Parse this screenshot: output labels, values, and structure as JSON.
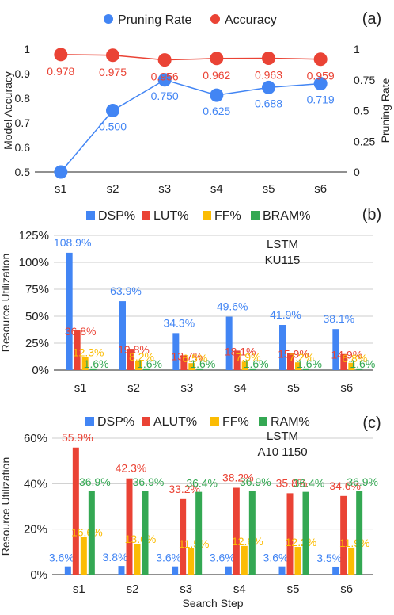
{
  "colors": {
    "blue": "#4285F4",
    "red": "#EA4335",
    "yellow": "#FBBC04",
    "green": "#34A853",
    "axis": "#222222",
    "grid": "#cccccc"
  },
  "chart_data": [
    {
      "panel_label": "(a)",
      "type": "line",
      "categories": [
        "s1",
        "s2",
        "s3",
        "s4",
        "s5",
        "s6"
      ],
      "legend": [
        "Pruning Rate",
        "Accuracy"
      ],
      "legend_position": "top",
      "grid": false,
      "ylabel": "Model Accuracy",
      "y2label": "Pruning Rate",
      "ylim": [
        0.5,
        1
      ],
      "yticks": [
        "0.5",
        "0.6",
        "0.7",
        "0.8",
        "0.9",
        "1"
      ],
      "y2lim": [
        0,
        1
      ],
      "y2ticks": [
        "0",
        "0.25",
        "0.5",
        "0.75",
        "1"
      ],
      "series": [
        {
          "name": "Pruning Rate",
          "axis": "right",
          "values": [
            0.0,
            0.5,
            0.75,
            0.625,
            0.688,
            0.719
          ],
          "labels": [
            "",
            "0.500",
            "0.750",
            "0.625",
            "0.688",
            "0.719"
          ]
        },
        {
          "name": "Accuracy",
          "axis": "left",
          "values": [
            0.978,
            0.975,
            0.956,
            0.962,
            0.963,
            0.959
          ],
          "labels": [
            "0.978",
            "0.975",
            "0.956",
            "0.962",
            "0.963",
            "0.959"
          ]
        }
      ]
    },
    {
      "panel_label": "(b)",
      "type": "bar",
      "categories": [
        "s1",
        "s2",
        "s3",
        "s4",
        "s5",
        "s6"
      ],
      "legend": [
        "DSP%",
        "LUT%",
        "FF%",
        "BRAM%"
      ],
      "legend_position": "top",
      "grid": true,
      "ylabel": "Resource Utilization",
      "ylim": [
        0,
        125
      ],
      "yticks": [
        "0%",
        "25%",
        "50%",
        "75%",
        "100%",
        "125%"
      ],
      "annotation": [
        "LSTM",
        "KU115"
      ],
      "series": [
        {
          "name": "DSP%",
          "values": [
            108.9,
            63.9,
            34.3,
            49.6,
            41.9,
            38.1
          ],
          "labels": [
            "108.9%",
            "63.9%",
            "34.3%",
            "49.6%",
            "41.9%",
            "38.1%"
          ]
        },
        {
          "name": "LUT%",
          "values": [
            36.8,
            19.8,
            13.7,
            18.1,
            15.9,
            14.9
          ],
          "labels": [
            "36.8%",
            "19.8%",
            "13.7%",
            "18.1%",
            "15.9%",
            "14.9%"
          ]
        },
        {
          "name": "FF%",
          "values": [
            12.3,
            8.2,
            6.5,
            7.9,
            7.2,
            6.8
          ],
          "labels": [
            "12.3%",
            "8.2%",
            "6.5%",
            "7.9%",
            "7.2%",
            "6.8%"
          ]
        },
        {
          "name": "BRAM%",
          "values": [
            1.6,
            1.6,
            1.6,
            1.6,
            1.6,
            1.6
          ],
          "labels": [
            "1.6%",
            "1.6%",
            "1.6%",
            "1.6%",
            "1.6%",
            "1.6%"
          ]
        }
      ]
    },
    {
      "panel_label": "(c)",
      "type": "bar",
      "categories": [
        "s1",
        "s2",
        "s3",
        "s4",
        "s5",
        "s6"
      ],
      "legend": [
        "DSP%",
        "ALUT%",
        "FF%",
        "RAM%"
      ],
      "legend_position": "top",
      "grid": true,
      "xlabel": "Search Step",
      "ylabel": "Resource Utilization",
      "ylim": [
        0,
        60
      ],
      "yticks": [
        "0%",
        "20%",
        "40%",
        "60%"
      ],
      "annotation": [
        "LSTM",
        "A10 1150"
      ],
      "series": [
        {
          "name": "DSP%",
          "values": [
            3.6,
            3.8,
            3.6,
            3.6,
            3.6,
            3.5
          ],
          "labels": [
            "3.6%",
            "3.8%",
            "3.6%",
            "3.6%",
            "3.6%",
            "3.5%"
          ]
        },
        {
          "name": "ALUT%",
          "values": [
            55.9,
            42.3,
            33.2,
            38.2,
            35.8,
            34.6
          ],
          "labels": [
            "55.9%",
            "42.3%",
            "33.2%",
            "38.2%",
            "35.8%",
            "34.6%"
          ]
        },
        {
          "name": "FF%",
          "values": [
            16.6,
            13.6,
            11.5,
            12.6,
            12.2,
            11.9
          ],
          "labels": [
            "16.6%",
            "13.6%",
            "11.5%",
            "12.6%",
            "12.2%",
            "11.9%"
          ]
        },
        {
          "name": "RAM%",
          "values": [
            36.9,
            36.9,
            36.4,
            36.9,
            36.4,
            36.9
          ],
          "labels": [
            "36.9%",
            "36.9%",
            "36.4%",
            "36.9%",
            "36.4%",
            "36.9%"
          ]
        }
      ]
    }
  ]
}
